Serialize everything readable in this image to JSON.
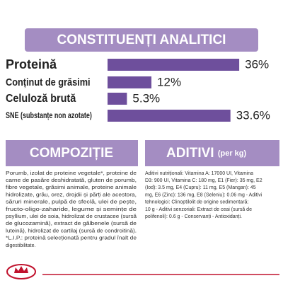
{
  "chart_data": {
    "type": "bar",
    "title": "CONSTITUENȚI ANALITICI",
    "categories": [
      "Proteină",
      "Conținut de grăsimi",
      "Celuloză brută",
      "SNE (substanțe non azotate)"
    ],
    "values": [
      36,
      12,
      5.3,
      33.6
    ],
    "value_labels": [
      "36%",
      "12%",
      "5.3%",
      "33.6%"
    ],
    "color": "#6e4f9c"
  },
  "composition": {
    "title": "COMPOZIȚIE",
    "lines": [
      "Porumb, izolat de proteine vegetale*, proteine de",
      "carne de pasăre deshidratată, gluten de porumb,",
      "fibre vegetale, grăsimi animale, proteine animale",
      "hidrolizate, grâu, orez, drojdii și părți ale acestora,",
      "săruri minerale, pulpă de sfeclă, ulei de pește,",
      "fructo-oligo-zaharide, legume și semințe de",
      "psyllium, ulei de soia, hidrolizat de crustacee (sursă",
      "de glucozamină), extract de gălbenele (sursă de",
      "luteină), hidrolizat de cartilaj (sursă de condroitină).",
      "*L.I.P.: proteină selecționată pentru gradul înalt de",
      "digestibilitate."
    ]
  },
  "additives": {
    "title": "ADITIVI",
    "subtitle": "(per kg)",
    "lines": [
      "Aditivi nutriționali: Vitamina A: 17000 UI, Vitamina",
      "D3: 900 UI, Vitamina C: 180 mg, E1 (Fier): 35 mg, E2",
      "(Iod): 3.5 mg, E4 (Cupru): 11 mg, E5 (Mangan): 45",
      "mg, E6 (Zinc): 136 mg, E8 (Seleniu): 0.06 mg - Aditivi",
      "tehnologici: Clinoptilolit de origine sedimentară:",
      "10 g - Aditivi senzoriali: Extract de ceai (sursă de",
      "polifenoli): 0.6 g - Conservanți - Antioxidanți."
    ]
  }
}
